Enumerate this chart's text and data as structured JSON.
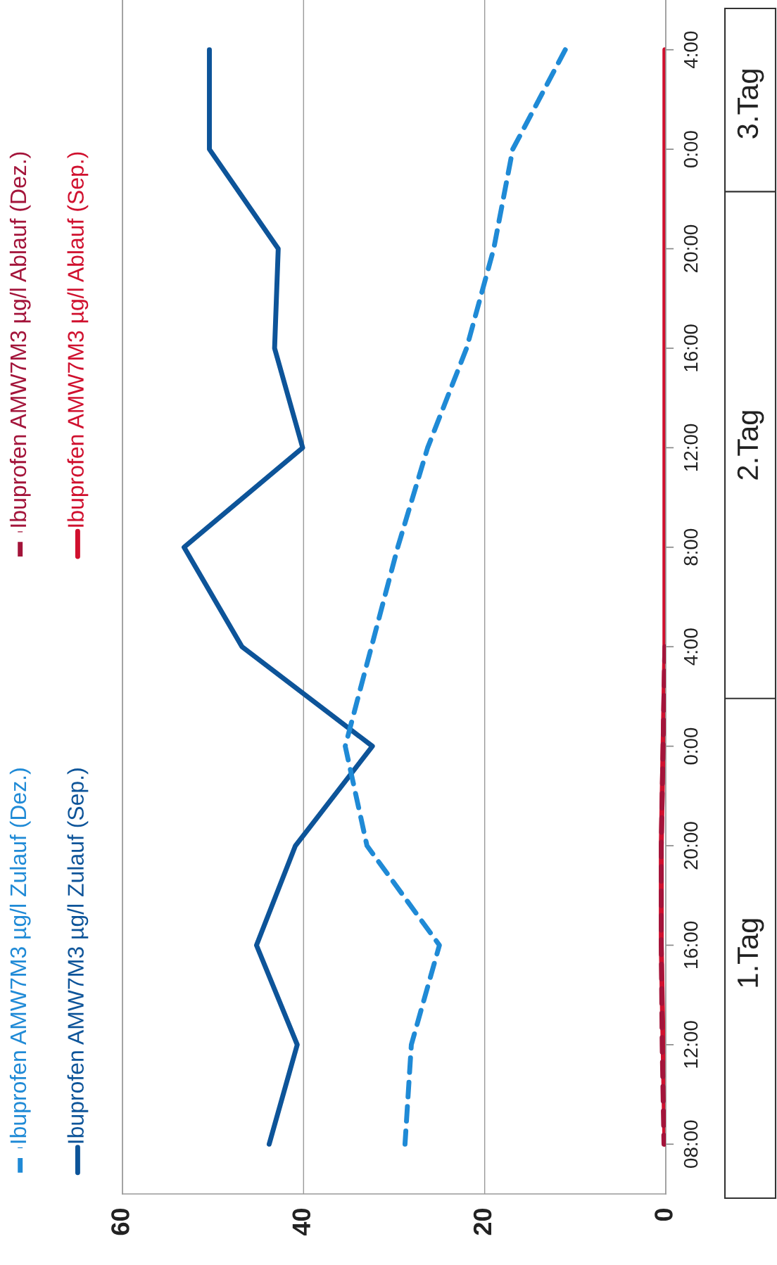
{
  "chart_data": {
    "type": "line",
    "orientation": "horizontal",
    "xlim": [
      60,
      0
    ],
    "xticks": [
      60,
      40,
      20,
      0
    ],
    "categories": [
      "4:00",
      "0:00",
      "20:00",
      "16:00",
      "12:00",
      "8:00",
      "4:00",
      "0:00",
      "20:00",
      "16:00",
      "12:00",
      "08:00"
    ],
    "grid": "x",
    "legend": "left",
    "series": [
      {
        "name": "Ibuprofen AMW7M3 µg/l Zulauf (Dez.)",
        "color": "#1f8ad6",
        "line_style": "dashed",
        "values": [
          11.1,
          16.9,
          19.0,
          22.0,
          26.3,
          29.6,
          32.5,
          35.4,
          33.0,
          25.0,
          28.1,
          28.8
        ]
      },
      {
        "name": "Ibuprofen AMW7M3 µg/l Zulauf (Sep.)",
        "color": "#0d5499",
        "line_style": "solid",
        "values": [
          50.4,
          50.4,
          42.8,
          43.2,
          40.1,
          53.2,
          46.8,
          32.4,
          40.9,
          45.2,
          40.7,
          43.8
        ]
      },
      {
        "name": "Ibuprofen AMW7M3 µg/l Ablauf (Dez.)",
        "color": "#a3143a",
        "line_style": "dashed",
        "values": [
          null,
          null,
          null,
          null,
          null,
          null,
          0.1,
          0.3,
          0.5,
          0.5,
          0.4,
          0.2
        ]
      },
      {
        "name": "Ibuprofen AMW7M3 µg/l Ablauf (Sep.)",
        "color": "#d0102e",
        "line_style": "solid",
        "values": [
          0.1,
          0.1,
          0.1,
          0.1,
          0.1,
          0.1,
          0.1,
          0.3,
          0.5,
          0.5,
          0.3,
          0.1
        ]
      }
    ],
    "annotations": [
      "1.Tag",
      "2.Tag",
      "3.Tag"
    ]
  }
}
